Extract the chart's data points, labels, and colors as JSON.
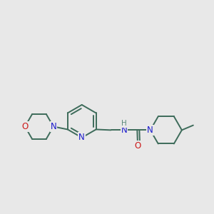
{
  "bg_color": "#e8e8e8",
  "bond_color": "#3d6b5a",
  "N_color": "#1a1acc",
  "O_color": "#cc1a1a",
  "H_color": "#5a8a7a",
  "line_width": 1.4,
  "fig_size": [
    3.0,
    3.0
  ],
  "dpi": 100,
  "xlim": [
    0.02,
    0.98
  ],
  "ylim": [
    0.25,
    0.82
  ]
}
